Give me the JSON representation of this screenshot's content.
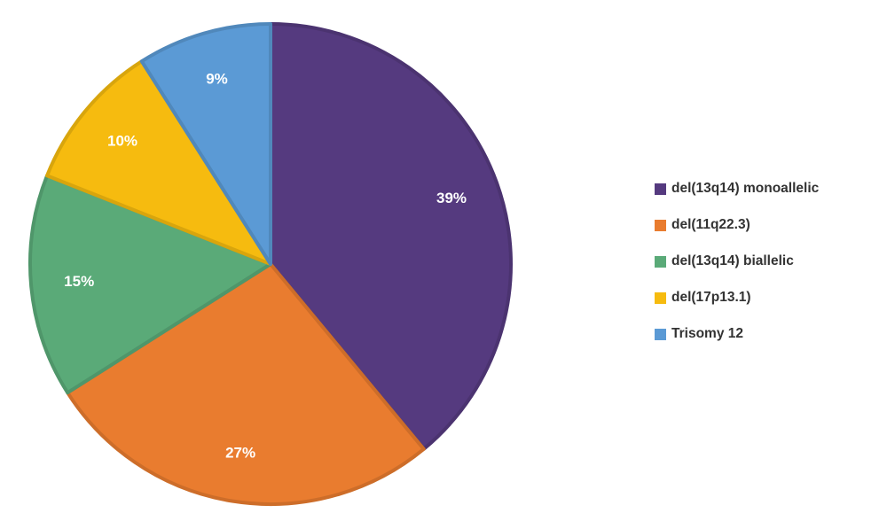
{
  "chart_data": {
    "type": "pie",
    "slices": [
      {
        "label": "del(13q14) monoallelic",
        "value": 39,
        "value_label": "39%",
        "color": "#553a7f"
      },
      {
        "label": "del(11q22.3)",
        "value": 27,
        "value_label": "27%",
        "color": "#e97c2f"
      },
      {
        "label": "del(13q14) biallelic",
        "value": 15,
        "value_label": "15%",
        "color": "#5aaa78"
      },
      {
        "label": "del(17p13.1)",
        "value": 10,
        "value_label": "10%",
        "color": "#f6bb0f"
      },
      {
        "label": "Trisomy 12",
        "value": 9,
        "value_label": "9%",
        "color": "#5b9ad5"
      }
    ],
    "start_angle_deg": 0,
    "direction": "clockwise",
    "legend_position": "right"
  }
}
